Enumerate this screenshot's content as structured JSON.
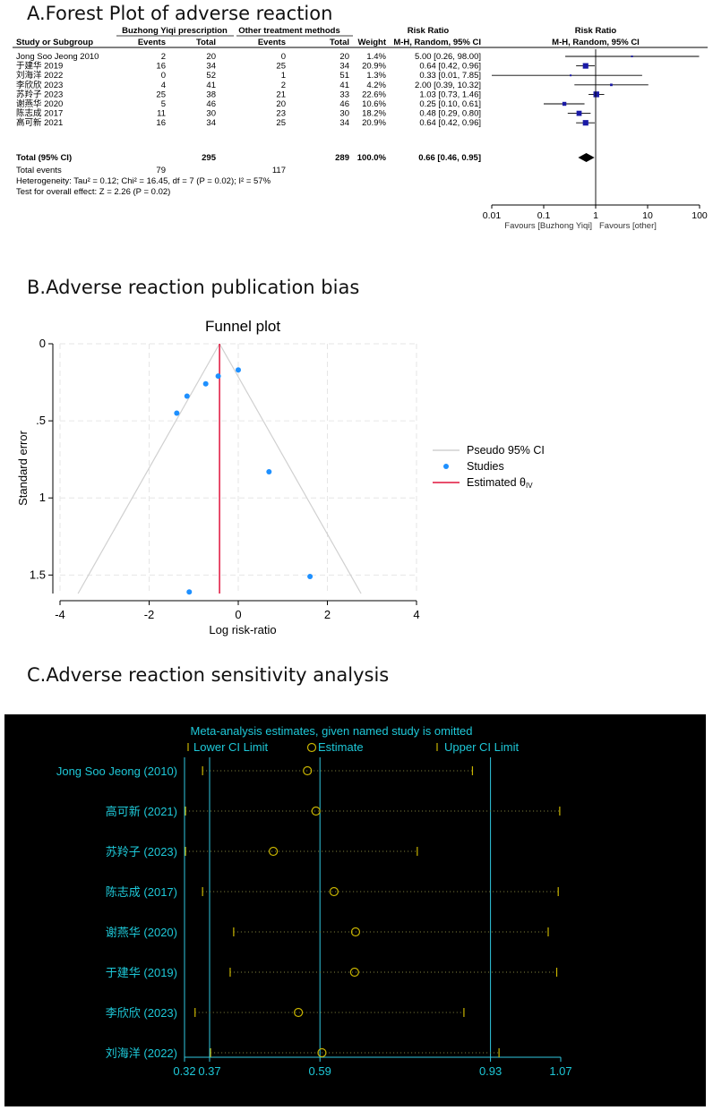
{
  "panels": {
    "a_title": "A.Forest Plot of adverse reaction",
    "b_title": "B.Adverse reaction publication bias",
    "c_title": "C.Adverse reaction  sensitivity analysis"
  },
  "chart_data": [
    {
      "type": "table",
      "group_headers": {
        "treatment": "Buzhong Yiqi prescription",
        "control": "Other treatment methods",
        "ratio_text": "Risk Ratio",
        "ratio_plot": "Risk Ratio"
      },
      "columns": {
        "study": "Study or Subgroup",
        "events1": "Events",
        "total1": "Total",
        "events2": "Events",
        "total2": "Total",
        "weight": "Weight",
        "method_text": "M-H, Random, 95% CI",
        "method_plot": "M-H, Random, 95% CI"
      },
      "studies": [
        {
          "name": "Jong Soo Jeong 2010",
          "e1": "2",
          "t1": "20",
          "e2": "0",
          "t2": "20",
          "weight": "1.4%",
          "ci_text": "5.00 [0.26, 98.00]",
          "rr": 5.0,
          "lo": 0.26,
          "hi": 98.0
        },
        {
          "name": "于建华 2019",
          "e1": "16",
          "t1": "34",
          "e2": "25",
          "t2": "34",
          "weight": "20.9%",
          "ci_text": "0.64 [0.42, 0.96]",
          "rr": 0.64,
          "lo": 0.42,
          "hi": 0.96
        },
        {
          "name": "刘海洋 2022",
          "e1": "0",
          "t1": "52",
          "e2": "1",
          "t2": "51",
          "weight": "1.3%",
          "ci_text": "0.33 [0.01, 7.85]",
          "rr": 0.33,
          "lo": 0.01,
          "hi": 7.85
        },
        {
          "name": "李欣欣 2023",
          "e1": "4",
          "t1": "41",
          "e2": "2",
          "t2": "41",
          "weight": "4.2%",
          "ci_text": "2.00 [0.39, 10.32]",
          "rr": 2.0,
          "lo": 0.39,
          "hi": 10.32
        },
        {
          "name": "苏羚子 2023",
          "e1": "25",
          "t1": "38",
          "e2": "21",
          "t2": "33",
          "weight": "22.6%",
          "ci_text": "1.03 [0.73, 1.46]",
          "rr": 1.03,
          "lo": 0.73,
          "hi": 1.46
        },
        {
          "name": "谢燕华 2020",
          "e1": "5",
          "t1": "46",
          "e2": "20",
          "t2": "46",
          "weight": "10.6%",
          "ci_text": "0.25 [0.10, 0.61]",
          "rr": 0.25,
          "lo": 0.1,
          "hi": 0.61
        },
        {
          "name": "陈志成 2017",
          "e1": "11",
          "t1": "30",
          "e2": "23",
          "t2": "30",
          "weight": "18.2%",
          "ci_text": "0.48 [0.29, 0.80]",
          "rr": 0.48,
          "lo": 0.29,
          "hi": 0.8
        },
        {
          "name": "高可新 2021",
          "e1": "16",
          "t1": "34",
          "e2": "25",
          "t2": "34",
          "weight": "20.9%",
          "ci_text": "0.64 [0.42, 0.96]",
          "rr": 0.64,
          "lo": 0.42,
          "hi": 0.96
        }
      ],
      "total": {
        "name": "Total (95% CI)",
        "t1": "295",
        "t2": "289",
        "weight": "100.0%",
        "ci_text": "0.66 [0.46, 0.95]",
        "rr": 0.66,
        "lo": 0.46,
        "hi": 0.95
      },
      "total_events": {
        "label": "Total events",
        "e1": "79",
        "e2": "117"
      },
      "heterogeneity": "Heterogeneity: Tau² = 0.12; Chi² = 16.45, df = 7 (P = 0.02); I² = 57%",
      "overall_test": "Test for overall effect: Z = 2.26 (P = 0.02)",
      "axis": {
        "scale": "log",
        "ticks": [
          "0.01",
          "0.1",
          "1",
          "10",
          "100"
        ],
        "tick_values": [
          0.01,
          0.1,
          1,
          10,
          100
        ]
      },
      "favours_left": "Favours [Buzhong Yiqi]",
      "favours_right": "Favours [other]"
    },
    {
      "type": "scatter",
      "title": "Funnel plot",
      "xlabel": "Log risk-ratio",
      "ylabel": "Standard error",
      "xlim": [
        -4,
        4
      ],
      "ylim": [
        0,
        1.62
      ],
      "y_reversed": true,
      "xticks": [
        "-4",
        "-2",
        "0",
        "2",
        "4"
      ],
      "xtick_values": [
        -4,
        -2,
        0,
        2,
        4
      ],
      "yticks": [
        "0",
        ".5",
        "1",
        "1.5"
      ],
      "ytick_values": [
        0,
        0.5,
        1,
        1.5
      ],
      "grid": true,
      "points": [
        {
          "x": 0.0,
          "y": 0.17
        },
        {
          "x": -0.45,
          "y": 0.21
        },
        {
          "x": -0.73,
          "y": 0.26
        },
        {
          "x": -1.15,
          "y": 0.34
        },
        {
          "x": -1.38,
          "y": 0.45
        },
        {
          "x": 0.69,
          "y": 0.83
        },
        {
          "x": 1.61,
          "y": 1.51
        },
        {
          "x": -1.1,
          "y": 1.61
        }
      ],
      "estimate_x": -0.42,
      "legend": {
        "ci": "Pseudo 95% CI",
        "studies": "Studies",
        "estimate": "Estimated θ",
        "estimate_sub": "IV"
      },
      "colors": {
        "points": "#1e90ff",
        "estimate": "#e0143c",
        "ci": "#d0d0d0"
      }
    },
    {
      "type": "line",
      "title": "Meta-analysis estimates, given named study is omitted",
      "legend": {
        "lower": "Lower CI Limit",
        "estimate": "Estimate",
        "upper": "Upper CI Limit"
      },
      "xlim": [
        0.32,
        1.07
      ],
      "xticks": [
        "0.32",
        "0.37",
        "0.59",
        "0.93",
        "1.07"
      ],
      "xtick_values": [
        0.32,
        0.37,
        0.59,
        0.93,
        1.07
      ],
      "rows": [
        {
          "label": "Jong Soo Jeong (2010)",
          "lo": 0.356,
          "est": 0.565,
          "hi": 0.894
        },
        {
          "label": "高可新 (2021)",
          "lo": 0.322,
          "est": 0.582,
          "hi": 1.068
        },
        {
          "label": "苏羚子 (2023)",
          "lo": 0.322,
          "est": 0.497,
          "hi": 0.784
        },
        {
          "label": "陈志成 (2017)",
          "lo": 0.356,
          "est": 0.618,
          "hi": 1.065
        },
        {
          "label": "谢燕华 (2020)",
          "lo": 0.418,
          "est": 0.661,
          "hi": 1.045
        },
        {
          "label": "于建华 (2019)",
          "lo": 0.411,
          "est": 0.659,
          "hi": 1.062
        },
        {
          "label": "李欣欣 (2023)",
          "lo": 0.341,
          "est": 0.547,
          "hi": 0.877
        },
        {
          "label": "刘海洋 (2022)",
          "lo": 0.372,
          "est": 0.594,
          "hi": 0.947
        }
      ],
      "colors": {
        "background": "#000000",
        "axes": "#30c8e0",
        "marker": "#c8b400",
        "text": "#1ec8d8"
      }
    }
  ]
}
